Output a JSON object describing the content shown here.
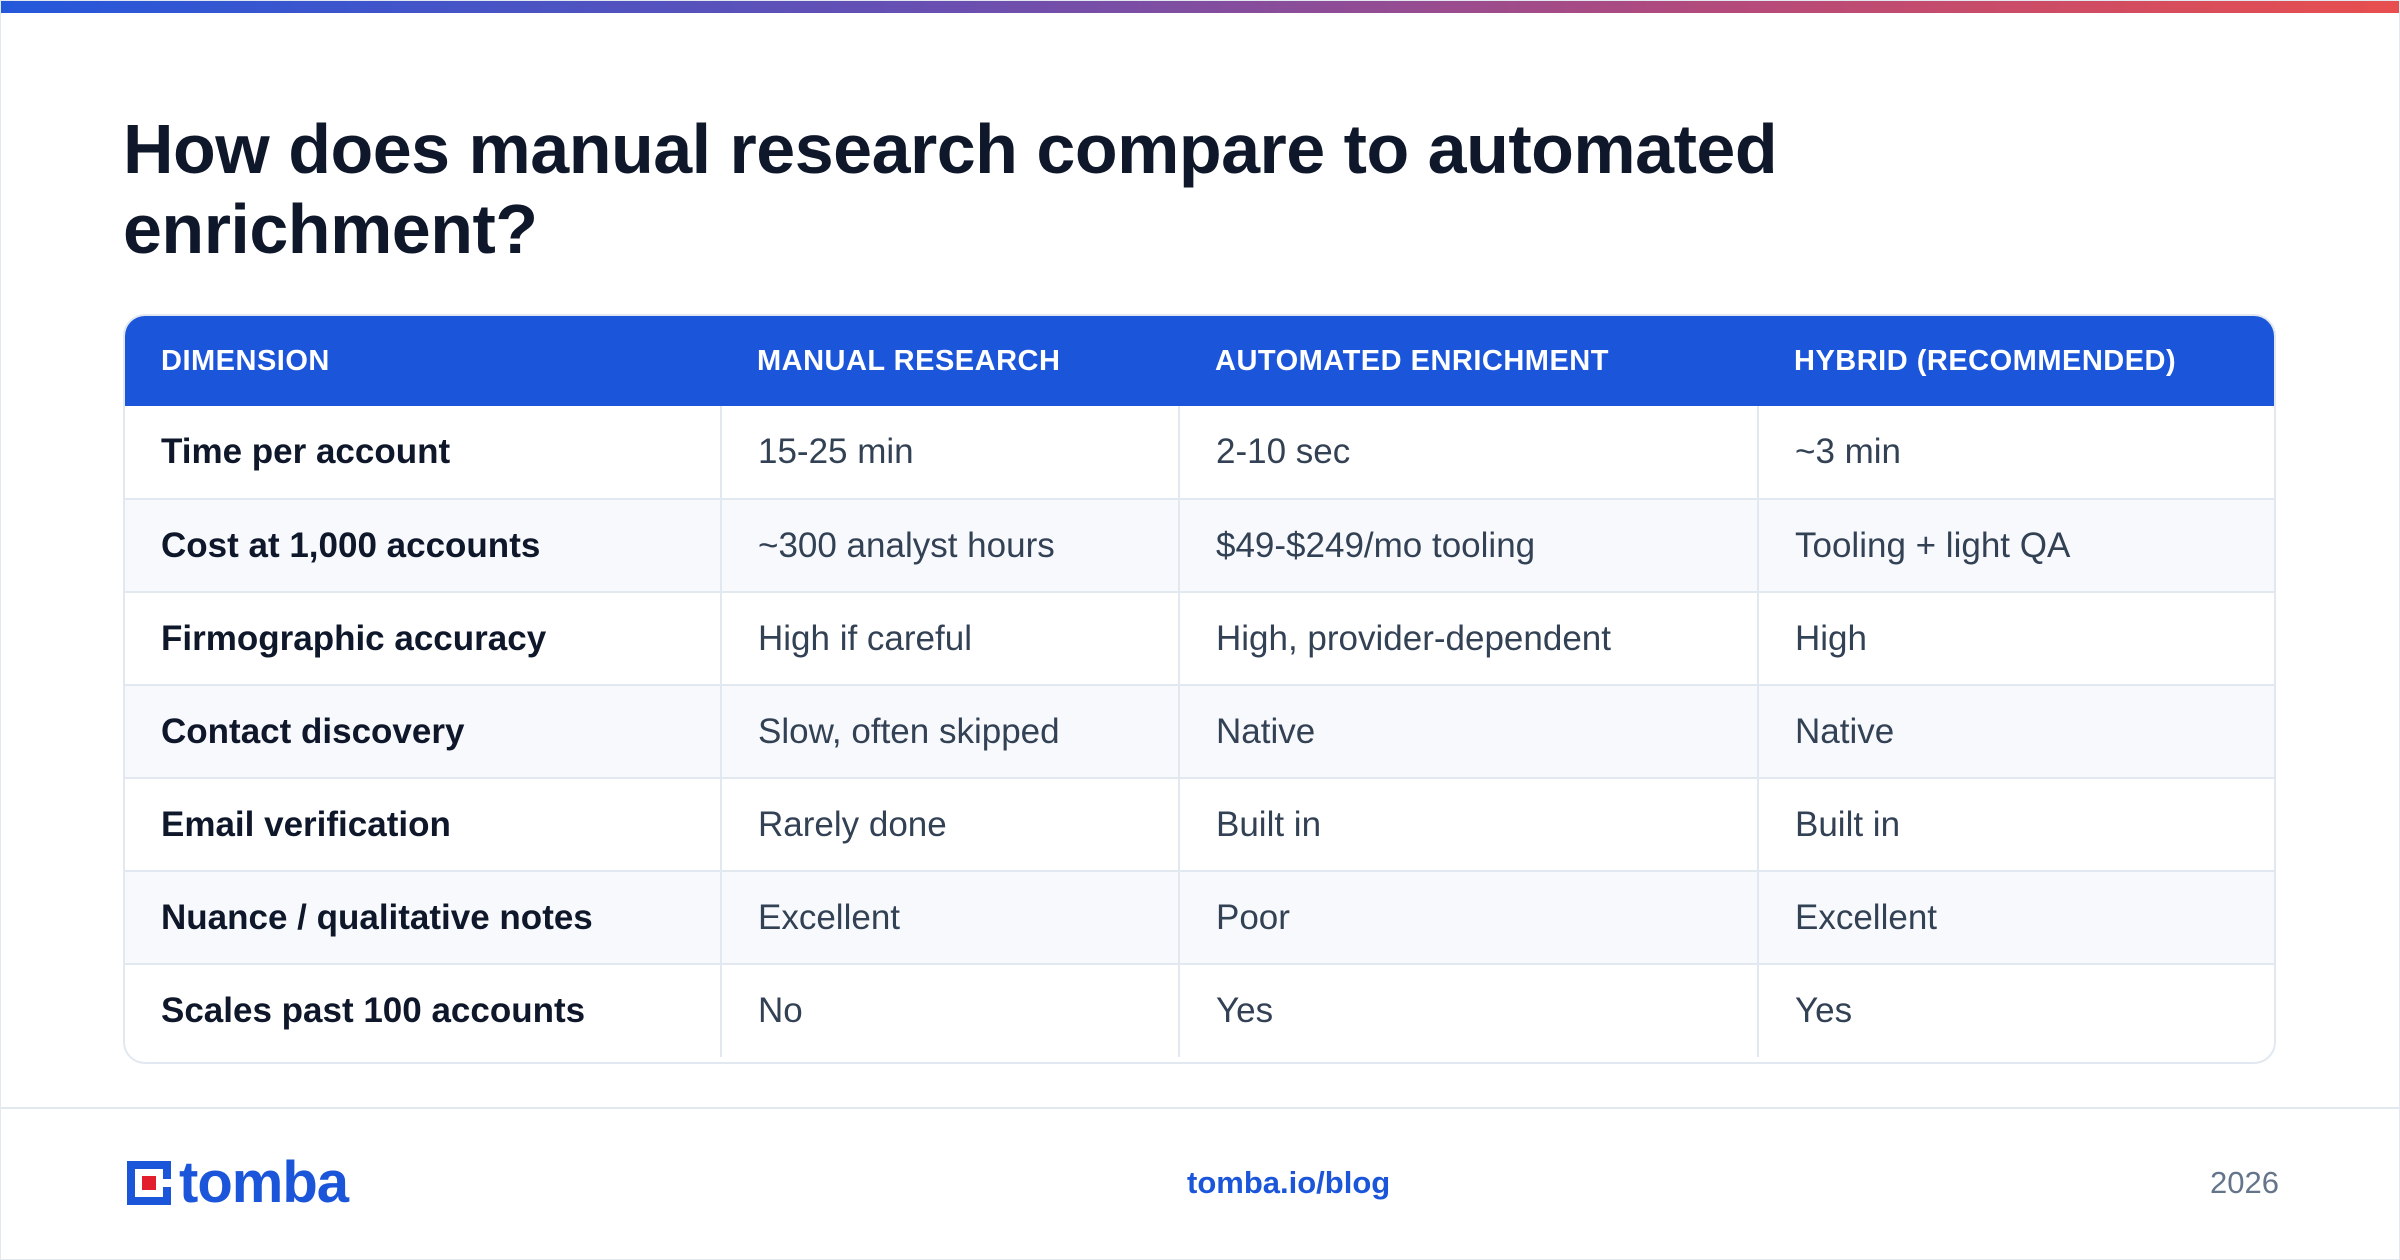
{
  "title": "How does manual research compare to automated enrichment?",
  "table": {
    "headers": [
      "DIMENSION",
      "MANUAL RESEARCH",
      "AUTOMATED ENRICHMENT",
      "HYBRID (RECOMMENDED)"
    ],
    "rows": [
      [
        "Time per account",
        "15-25 min",
        "2-10 sec",
        "~3 min"
      ],
      [
        "Cost at 1,000 accounts",
        "~300 analyst hours",
        "$49-$249/mo tooling",
        "Tooling + light QA"
      ],
      [
        "Firmographic accuracy",
        "High if careful",
        "High, provider-dependent",
        "High"
      ],
      [
        "Contact discovery",
        "Slow, often skipped",
        "Native",
        "Native"
      ],
      [
        "Email verification",
        "Rarely done",
        "Built in",
        "Built in"
      ],
      [
        "Nuance / qualitative notes",
        "Excellent",
        "Poor",
        "Excellent"
      ],
      [
        "Scales past 100 accounts",
        "No",
        "Yes",
        "Yes"
      ]
    ]
  },
  "footer": {
    "logo_text": "tomba",
    "link": "tomba.io/blog",
    "year": "2026"
  },
  "colors": {
    "accent": "#1b55d9",
    "title": "#0f172a",
    "row_alt": "#f7f9fc"
  }
}
